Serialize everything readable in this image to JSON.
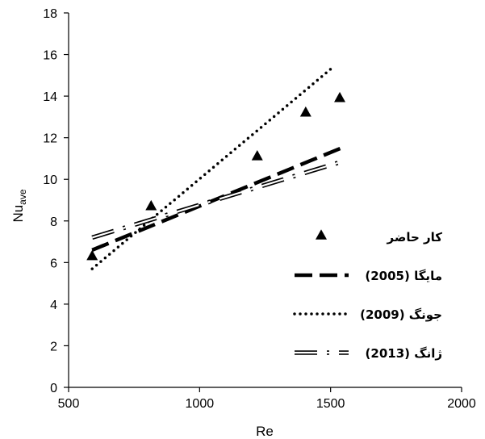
{
  "chart_data": {
    "type": "scatter",
    "xlabel": "Re",
    "ylabel": {
      "main": "Nu",
      "sub": "ave"
    },
    "xlim": [
      500,
      2000
    ],
    "ylim": [
      0,
      18
    ],
    "xticks": [
      500,
      1000,
      1500,
      2000
    ],
    "yticks": [
      0,
      2,
      4,
      6,
      8,
      10,
      12,
      14,
      16,
      18
    ],
    "grid": false,
    "legend_position": "bottom-right",
    "series": [
      {
        "name": "کار حاضر",
        "style": "marker",
        "x": [
          590,
          815,
          1220,
          1405,
          1535
        ],
        "y": [
          6.3,
          8.7,
          11.1,
          13.2,
          13.9
        ]
      },
      {
        "name": "مایگا (2005)",
        "style": "long-dash",
        "x": [
          590,
          1540
        ],
        "y": [
          6.6,
          11.5
        ]
      },
      {
        "name": "جونگ (2009)",
        "style": "dotted",
        "x": [
          590,
          1510
        ],
        "y": [
          5.7,
          15.4
        ]
      },
      {
        "name": "ژانگ (2013)",
        "style": "double-dash-dot",
        "x": [
          590,
          1530
        ],
        "y": [
          7.2,
          10.8
        ]
      }
    ]
  }
}
